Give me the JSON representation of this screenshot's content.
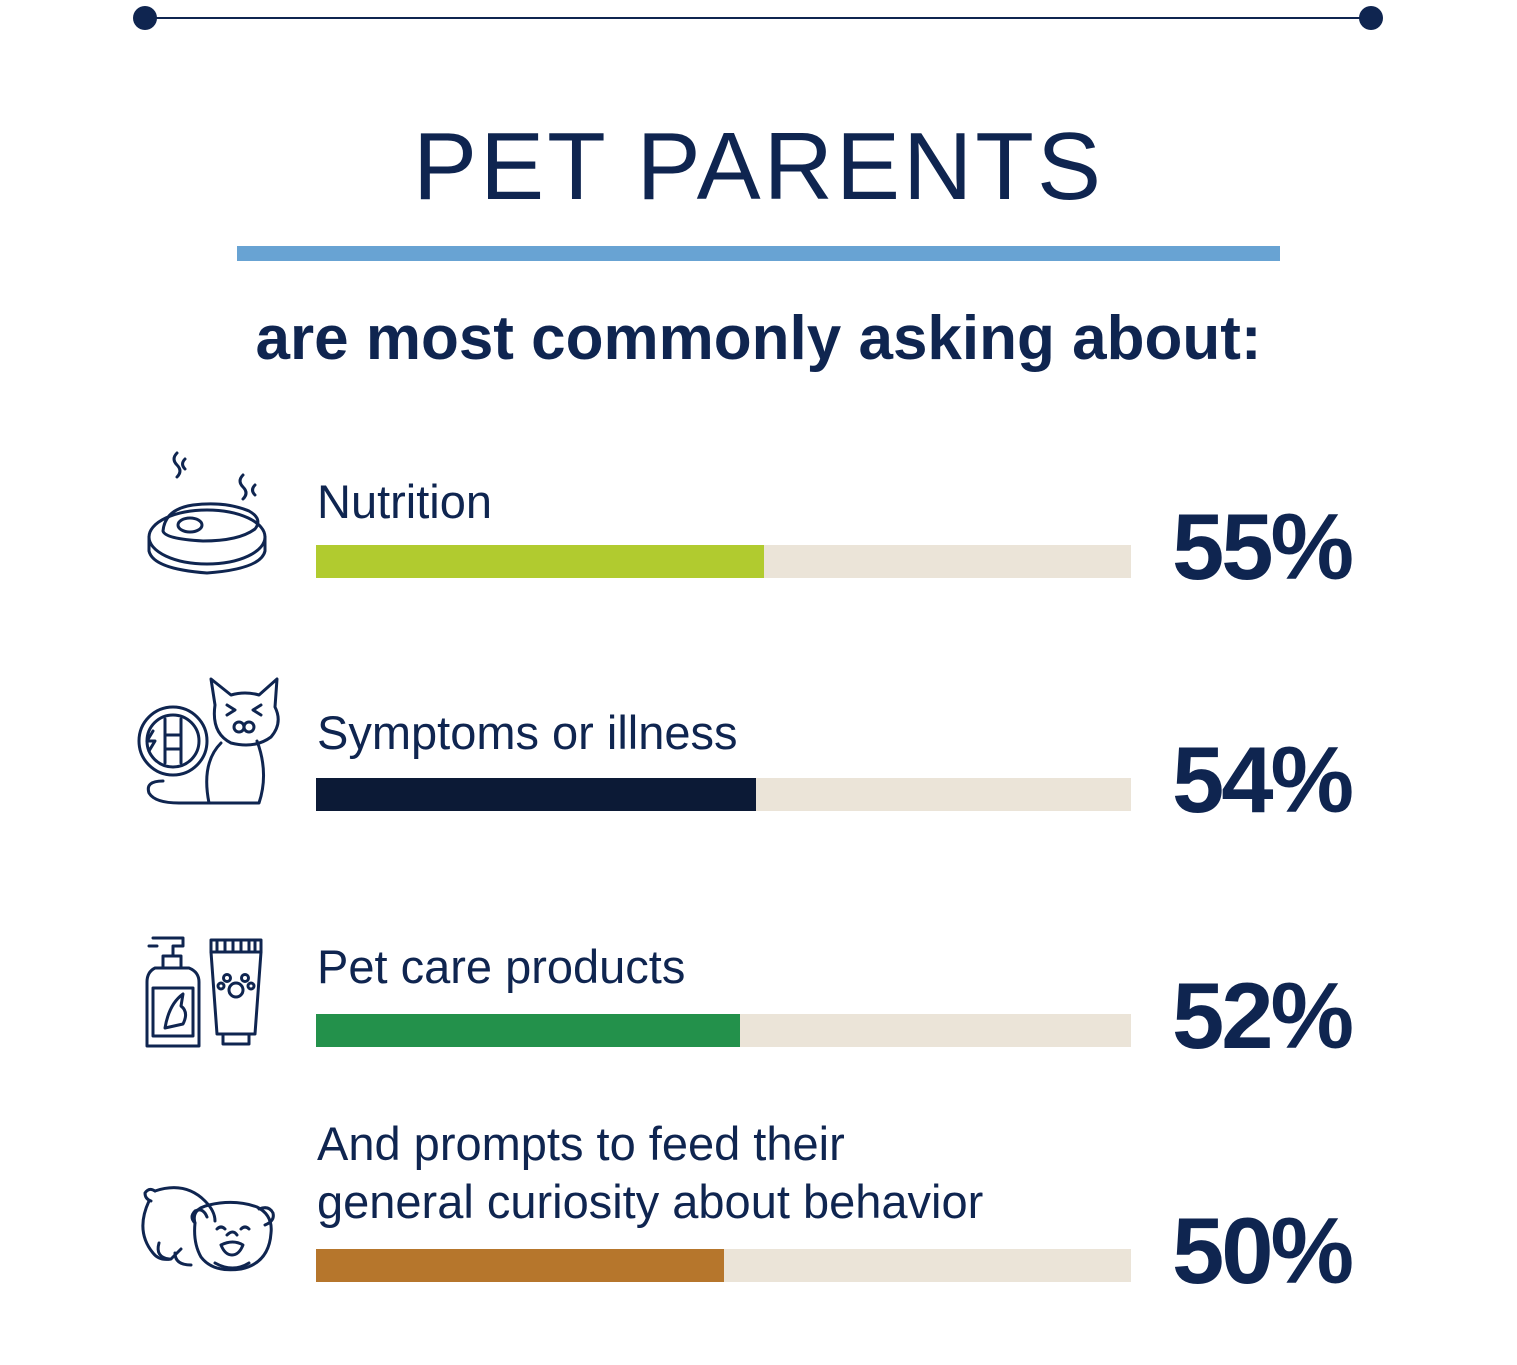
{
  "header": {
    "title": "PET PARENTS",
    "subtitle": "are most commonly asking about:"
  },
  "colors": {
    "navy": "#0f2550",
    "accent_rule": "#68a3d3",
    "track": "#ebe4d8"
  },
  "chart_data": {
    "type": "bar",
    "categories": [
      "Nutrition",
      "Symptoms or illness",
      "Pet care products",
      "And prompts to feed their general curiosity about behavior"
    ],
    "values": [
      55,
      54,
      52,
      50
    ],
    "xlim": [
      0,
      100
    ],
    "grid": false,
    "bars": [
      {
        "label": "Nutrition",
        "value": 55,
        "display": "55%",
        "color": "#b1cb2f",
        "icon": "steak-bowl-icon"
      },
      {
        "label": "Symptoms or illness",
        "value": 54,
        "display": "54%",
        "color": "#0c1a36",
        "icon": "sick-cat-icon"
      },
      {
        "label": "Pet care products",
        "value": 52,
        "display": "52%",
        "color": "#23914b",
        "icon": "shampoo-tube-icon"
      },
      {
        "label": "And prompts to feed their\ngeneral curiosity about behavior",
        "value": 50,
        "display": "50%",
        "color": "#b6762c",
        "icon": "bulldog-icon"
      }
    ]
  }
}
